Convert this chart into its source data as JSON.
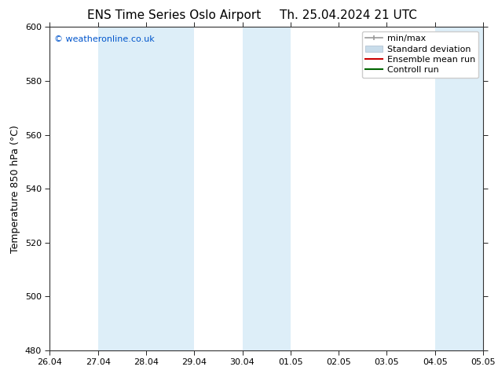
{
  "title_left": "ENS Time Series Oslo Airport",
  "title_right": "Th. 25.04.2024 21 UTC",
  "ylabel": "Temperature 850 hPa (°C)",
  "watermark": "© weatheronline.co.uk",
  "watermark_color": "#0055cc",
  "xlim_left": 0,
  "xlim_right": 9,
  "ylim_bottom": 480,
  "ylim_top": 600,
  "yticks": [
    480,
    500,
    520,
    540,
    560,
    580,
    600
  ],
  "xtick_labels": [
    "26.04",
    "27.04",
    "28.04",
    "29.04",
    "30.04",
    "01.05",
    "02.05",
    "03.05",
    "04.05",
    "05.05"
  ],
  "bg_color": "#ffffff",
  "plot_bg_color": "#ffffff",
  "shaded_bands": [
    {
      "x_start": 1.0,
      "x_end": 1.5,
      "color": "#ddeef8"
    },
    {
      "x_start": 1.5,
      "x_end": 2.0,
      "color": "#ddeef8"
    },
    {
      "x_start": 2.0,
      "x_end": 2.5,
      "color": "#ddeef8"
    },
    {
      "x_start": 2.5,
      "x_end": 3.0,
      "color": "#ddeef8"
    },
    {
      "x_start": 4.0,
      "x_end": 4.5,
      "color": "#ddeef8"
    },
    {
      "x_start": 4.5,
      "x_end": 5.0,
      "color": "#ddeef8"
    },
    {
      "x_start": 8.0,
      "x_end": 8.5,
      "color": "#ddeef8"
    },
    {
      "x_start": 8.5,
      "x_end": 9.0,
      "color": "#ddeef8"
    }
  ],
  "legend_entries": [
    {
      "label": "min/max",
      "color": "#999999",
      "style": "minmax"
    },
    {
      "label": "Standard deviation",
      "color": "#c8dcea",
      "style": "stddev"
    },
    {
      "label": "Ensemble mean run",
      "color": "#cc0000",
      "style": "line"
    },
    {
      "label": "Controll run",
      "color": "#006600",
      "style": "line"
    }
  ],
  "title_fontsize": 11,
  "axis_label_fontsize": 9,
  "tick_fontsize": 8,
  "legend_fontsize": 8,
  "watermark_fontsize": 8
}
